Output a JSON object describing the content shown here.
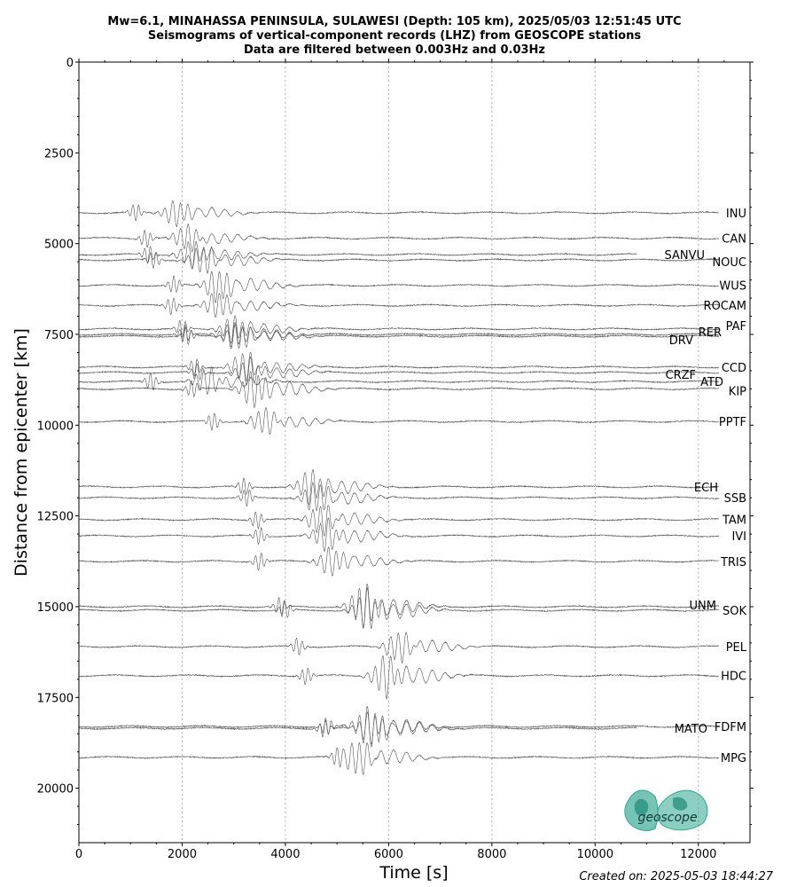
{
  "chart_data": {
    "type": "line",
    "title": [
      "Mw=6.1, MINAHASSA PENINSULA, SULAWESI (Depth: 105 km), 2025/05/03 12:51:45 UTC",
      "Seismograms of vertical-component records (LHZ) from GEOSCOPE stations",
      "Data are filtered between 0.003Hz and 0.03Hz"
    ],
    "xlabel": "Time [s]",
    "ylabel": "Distance from epicenter [km]",
    "xlim": [
      0,
      13000
    ],
    "ylim": [
      21500,
      0
    ],
    "xticks": [
      0,
      2000,
      4000,
      6000,
      8000,
      10000,
      12000
    ],
    "yticks": [
      0,
      2500,
      5000,
      7500,
      10000,
      12500,
      15000,
      17500,
      20000
    ],
    "grid": "vertical dotted",
    "stations": [
      {
        "name": "INU",
        "distance": 4150,
        "p_time": 1100,
        "s_time": 1900,
        "amp": 1.0
      },
      {
        "name": "CAN",
        "distance": 4850,
        "p_time": 1300,
        "s_time": 2100,
        "amp": 1.0
      },
      {
        "name": "SANVU",
        "distance": 5300,
        "p_time": 1350,
        "s_time": 2200,
        "amp": 1.0
      },
      {
        "name": "NOUC",
        "distance": 5450,
        "p_time": 1450,
        "s_time": 2400,
        "amp": 1.1
      },
      {
        "name": "WUS",
        "distance": 6150,
        "p_time": 1850,
        "s_time": 2700,
        "amp": 1.3
      },
      {
        "name": "ROCAM",
        "distance": 6700,
        "p_time": 1800,
        "s_time": 2700,
        "amp": 1.0
      },
      {
        "name": "PAF",
        "distance": 7350,
        "p_time": 2000,
        "s_time": 3000,
        "amp": 1.0
      },
      {
        "name": "RER",
        "distance": 7500,
        "p_time": 2050,
        "s_time": 3000,
        "amp": 1.0
      },
      {
        "name": "DRV",
        "distance": 7550,
        "p_time": 2100,
        "s_time": 3100,
        "amp": 1.0
      },
      {
        "name": "CCD",
        "distance": 8400,
        "p_time": 2250,
        "s_time": 3200,
        "amp": 1.1
      },
      {
        "name": "CRZF",
        "distance": 8550,
        "p_time": 2300,
        "s_time": 3300,
        "amp": 1.0
      },
      {
        "name": "ATD",
        "distance": 8800,
        "p_time": 1400,
        "s_time": 2500,
        "amp": 1.0
      },
      {
        "name": "KIP",
        "distance": 9000,
        "p_time": 2200,
        "s_time": 3400,
        "amp": 1.4
      },
      {
        "name": "PPTF",
        "distance": 9900,
        "p_time": 2600,
        "s_time": 3600,
        "amp": 1.0
      },
      {
        "name": "ECH",
        "distance": 11700,
        "p_time": 3200,
        "s_time": 4500,
        "amp": 1.3
      },
      {
        "name": "SSB",
        "distance": 12000,
        "p_time": 3250,
        "s_time": 4600,
        "amp": 1.2
      },
      {
        "name": "TAM",
        "distance": 12600,
        "p_time": 3450,
        "s_time": 4700,
        "amp": 1.2
      },
      {
        "name": "IVI",
        "distance": 13050,
        "p_time": 3500,
        "s_time": 4800,
        "amp": 1.2
      },
      {
        "name": "TRIS",
        "distance": 13750,
        "p_time": 3500,
        "s_time": 4900,
        "amp": 1.1
      },
      {
        "name": "UNM",
        "distance": 15000,
        "p_time": 3900,
        "s_time": 5500,
        "amp": 1.6
      },
      {
        "name": "SOK",
        "distance": 15100,
        "p_time": 4000,
        "s_time": 5600,
        "amp": 1.5
      },
      {
        "name": "PEL",
        "distance": 16100,
        "p_time": 4250,
        "s_time": 6200,
        "amp": 1.2
      },
      {
        "name": "HDC",
        "distance": 16900,
        "p_time": 4400,
        "s_time": 5950,
        "amp": 1.6
      },
      {
        "name": "FDFM",
        "distance": 18300,
        "p_time": 4800,
        "s_time": 5600,
        "amp": 1.4
      },
      {
        "name": "MATO",
        "distance": 18350,
        "p_time": 4750,
        "s_time": 5700,
        "amp": 1.4
      },
      {
        "name": "MPG",
        "distance": 19150,
        "p_time": 5000,
        "s_time": 5400,
        "amp": 1.4
      }
    ]
  },
  "created": "Created on: 2025-05-03 18:44:27",
  "logo": {
    "text": "geoscope",
    "color": "#2ea58f"
  }
}
